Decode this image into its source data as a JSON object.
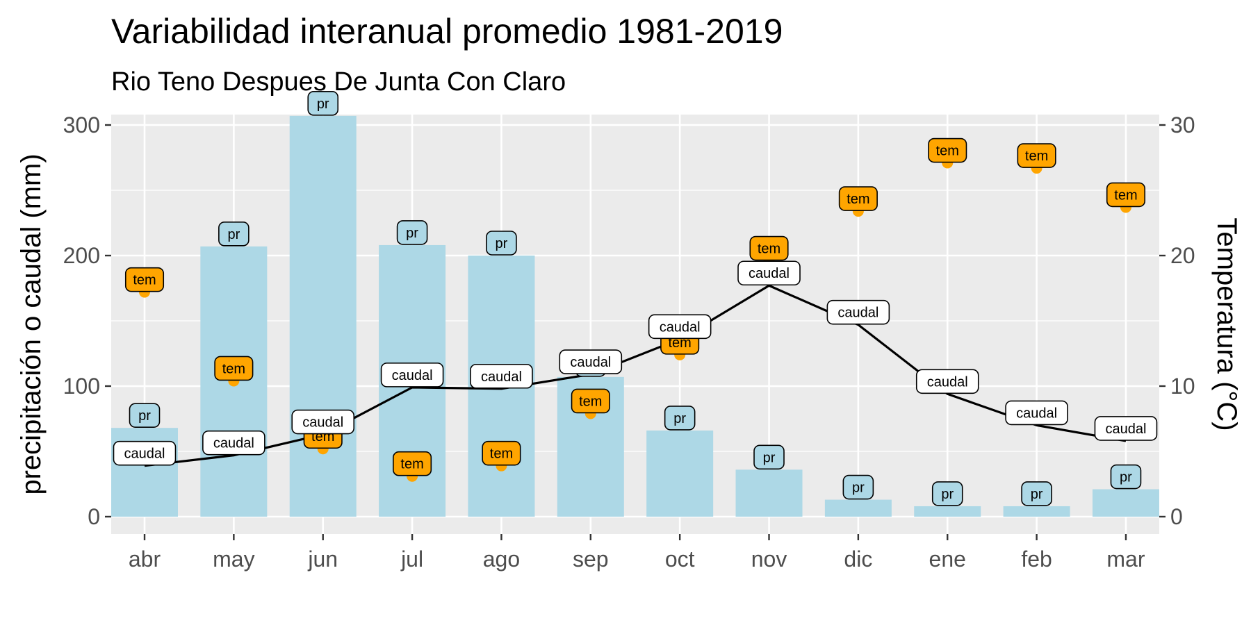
{
  "chart_data": {
    "type": "bar",
    "title": "Variabilidad interanual promedio 1981-2019",
    "subtitle": "Rio Teno Despues De Junta Con Claro",
    "categories": [
      "abr",
      "may",
      "jun",
      "jul",
      "ago",
      "sep",
      "oct",
      "nov",
      "dic",
      "ene",
      "feb",
      "mar"
    ],
    "ylabel_left": "precipitación o caudal (mm)",
    "ylabel_right": "Temperatura (°C)",
    "ylim_left": [
      0,
      320
    ],
    "ylim_right": [
      0,
      32
    ],
    "yticks_left": [
      "0",
      "100",
      "200",
      "300"
    ],
    "yticks_right": [
      "0",
      "10",
      "20",
      "30"
    ],
    "grid": true,
    "series": [
      {
        "name": "pr",
        "kind": "bar",
        "label": "pr",
        "color": "#add8e6",
        "values": [
          68,
          207,
          307,
          208,
          200,
          107,
          66,
          36,
          13,
          8,
          8,
          21
        ]
      },
      {
        "name": "caudal",
        "kind": "line",
        "label": "caudal",
        "color": "#000000",
        "values": [
          39,
          47,
          63,
          99,
          98,
          109,
          136,
          177,
          147,
          94,
          70,
          58
        ]
      },
      {
        "name": "tem",
        "kind": "point",
        "label": "tem",
        "axis": "right",
        "color": "#ffa500",
        "values": [
          17.2,
          10.4,
          5.2,
          3.1,
          3.9,
          7.9,
          12.4,
          19.6,
          23.4,
          27.1,
          26.7,
          23.7
        ]
      }
    ]
  }
}
